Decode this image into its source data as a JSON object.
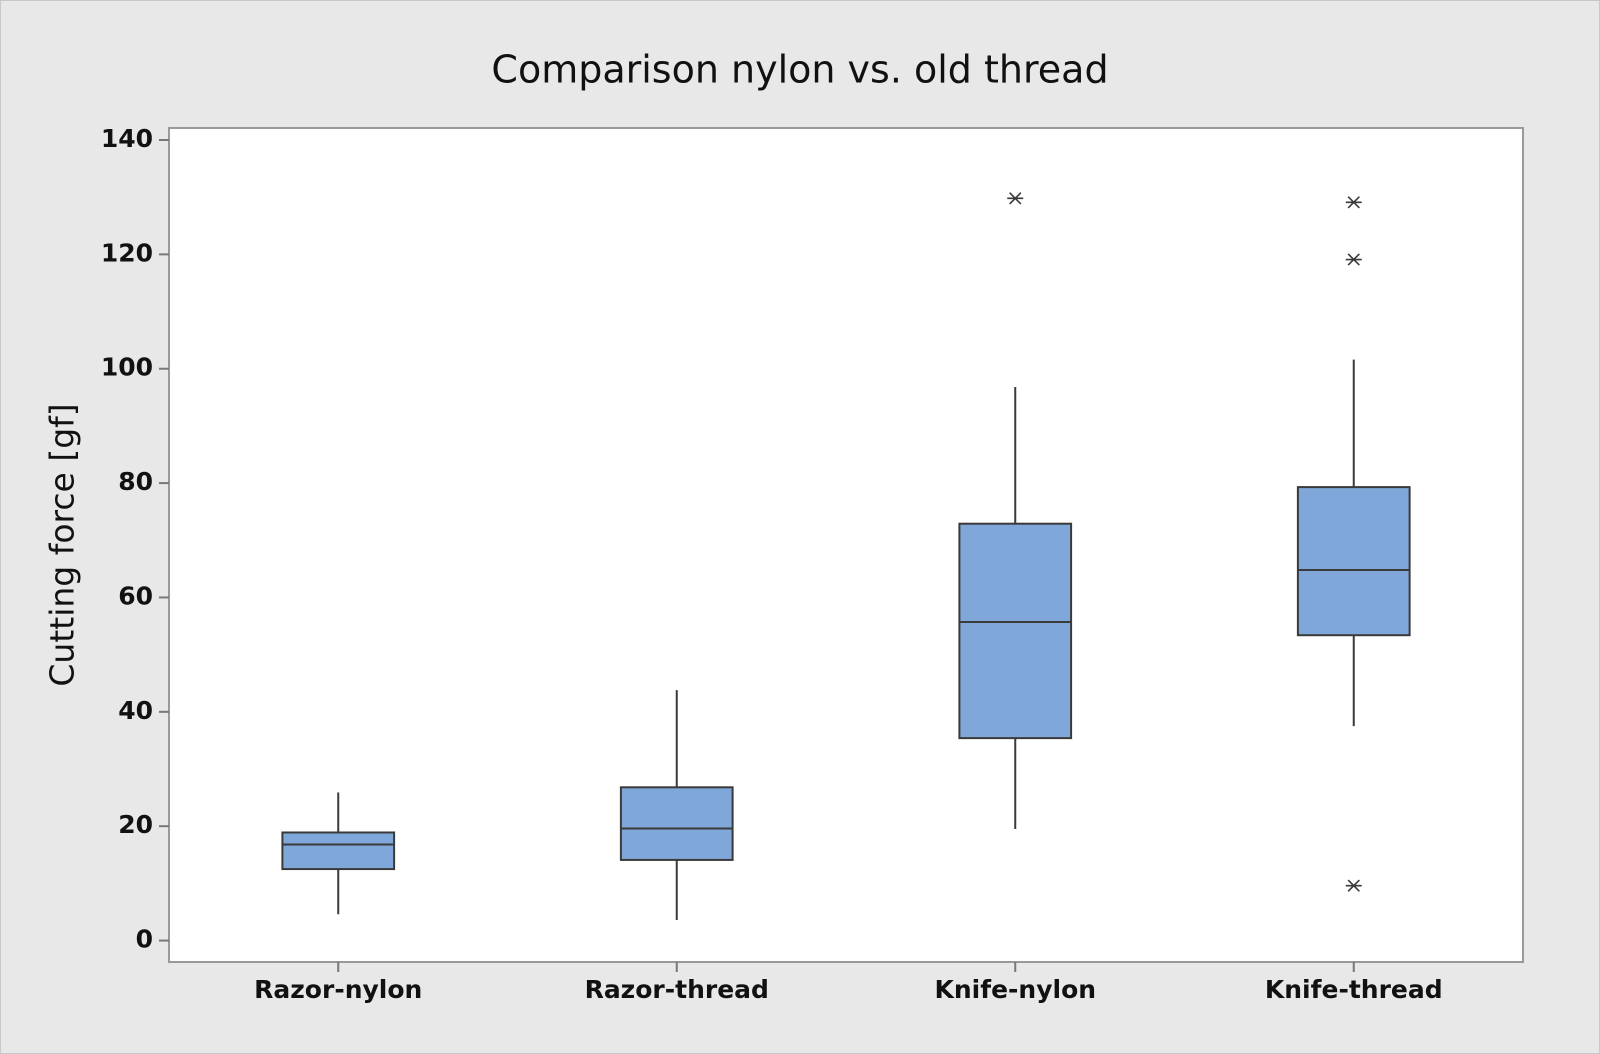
{
  "chart_data": {
    "type": "box",
    "title": "Comparison nylon vs. old thread",
    "y_label": "Cutting force [gf]",
    "categories": [
      "Razor-nylon",
      "Razor-thread",
      "Knife-nylon",
      "Knife-thread"
    ],
    "color": "#7fa7d9",
    "boxes": [
      {
        "whisker_low": 4.6,
        "q1": 12.5,
        "median": 16.8,
        "q3": 18.9,
        "whisker_high": 25.9,
        "outliers": []
      },
      {
        "whisker_low": 3.6,
        "q1": 14.1,
        "median": 19.6,
        "q3": 26.8,
        "whisker_high": 43.8,
        "outliers": []
      },
      {
        "whisker_low": 19.5,
        "q1": 35.4,
        "median": 55.7,
        "q3": 72.9,
        "whisker_high": 96.8,
        "outliers": [
          129.8
        ]
      },
      {
        "whisker_low": 37.5,
        "q1": 53.4,
        "median": 64.8,
        "q3": 79.3,
        "whisker_high": 101.6,
        "outliers": [
          129.1,
          119.1,
          9.6
        ]
      }
    ],
    "ylim": [
      -3.75,
      142.1
    ],
    "yticks": [
      0,
      20,
      40,
      60,
      80,
      100,
      120,
      140
    ],
    "grid": false
  }
}
